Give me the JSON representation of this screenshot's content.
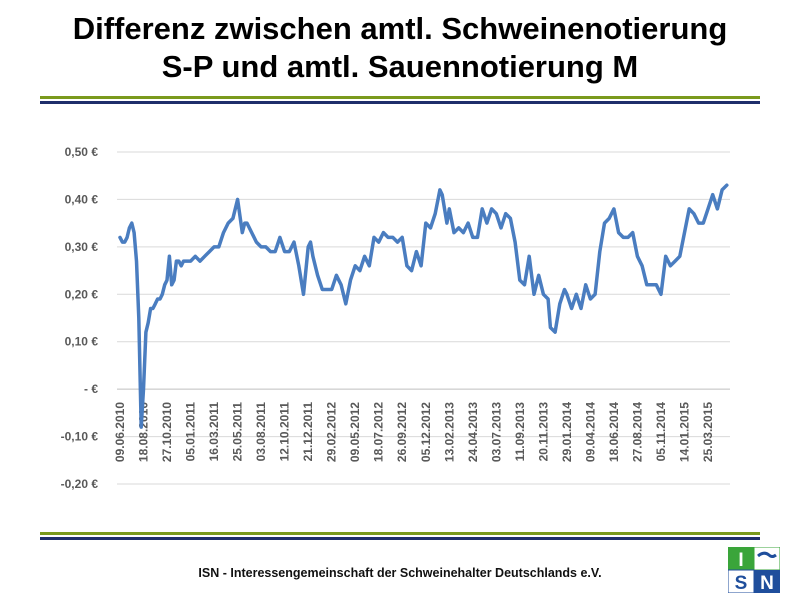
{
  "slide": {
    "title_line1": "Differenz zwischen amtl. Schweinenotierung",
    "title_line2": "S-P und amtl. Sauennotierung M",
    "footer": "ISN - Interessengemeinschaft der Schweinehalter Deutschlands e.V.",
    "logo_letters": "ISN",
    "colors": {
      "rule_green": "#7a9a1c",
      "rule_navy": "#1f2f6b",
      "series": "#4a7dc0",
      "logo_green": "#3aa53a",
      "logo_blue": "#1f4e9c"
    }
  },
  "chart_data": {
    "type": "line",
    "title": "",
    "xlabel": "",
    "ylabel": "",
    "ylim": [
      -0.2,
      0.5
    ],
    "grid": true,
    "legend": "none",
    "y_ticks": [
      {
        "value": 0.5,
        "label": "0,50 €"
      },
      {
        "value": 0.4,
        "label": "0,40 €"
      },
      {
        "value": 0.3,
        "label": "0,30 €"
      },
      {
        "value": 0.2,
        "label": "0,20 €"
      },
      {
        "value": 0.1,
        "label": "0,10 €"
      },
      {
        "value": 0.0,
        "label": "-  €"
      },
      {
        "value": -0.1,
        "label": "-0,10 €"
      },
      {
        "value": -0.2,
        "label": "-0,20 €"
      }
    ],
    "x_tick_labels": [
      "09.06.2010",
      "18.08.2010",
      "27.10.2010",
      "05.01.2011",
      "16.03.2011",
      "25.05.2011",
      "03.08.2011",
      "12.10.2011",
      "21.12.2011",
      "29.02.2012",
      "09.05.2012",
      "18.07.2012",
      "26.09.2012",
      "05.12.2012",
      "13.02.2013",
      "24.04.2013",
      "03.07.2013",
      "11.09.2013",
      "20.11.2013",
      "29.01.2014",
      "09.04.2014",
      "18.06.2014",
      "27.08.2014",
      "05.11.2014",
      "14.01.2015",
      "25.03.2015"
    ],
    "series": [
      {
        "color": "#4a7dc0",
        "x": [
          "2010-06-09",
          "2010-06-16",
          "2010-06-23",
          "2010-06-30",
          "2010-07-07",
          "2010-07-14",
          "2010-07-21",
          "2010-07-28",
          "2010-08-04",
          "2010-08-11",
          "2010-08-18",
          "2010-08-25",
          "2010-09-01",
          "2010-09-08",
          "2010-09-15",
          "2010-09-22",
          "2010-09-29",
          "2010-10-06",
          "2010-10-13",
          "2010-10-20",
          "2010-10-27",
          "2010-11-03",
          "2010-11-10",
          "2010-11-17",
          "2010-11-24",
          "2010-12-01",
          "2010-12-08",
          "2010-12-15",
          "2010-12-22",
          "2010-12-29",
          "2011-01-05",
          "2011-01-19",
          "2011-02-02",
          "2011-02-16",
          "2011-03-02",
          "2011-03-16",
          "2011-03-30",
          "2011-04-13",
          "2011-04-27",
          "2011-05-11",
          "2011-05-25",
          "2011-06-08",
          "2011-06-15",
          "2011-06-22",
          "2011-07-06",
          "2011-07-20",
          "2011-08-03",
          "2011-08-17",
          "2011-08-31",
          "2011-09-14",
          "2011-09-28",
          "2011-10-12",
          "2011-10-26",
          "2011-11-09",
          "2011-11-23",
          "2011-12-07",
          "2011-12-21",
          "2011-12-28",
          "2012-01-04",
          "2012-01-18",
          "2012-02-01",
          "2012-02-15",
          "2012-02-29",
          "2012-03-14",
          "2012-03-28",
          "2012-04-11",
          "2012-04-25",
          "2012-05-09",
          "2012-05-23",
          "2012-06-06",
          "2012-06-20",
          "2012-07-04",
          "2012-07-18",
          "2012-08-01",
          "2012-08-15",
          "2012-08-29",
          "2012-09-12",
          "2012-09-26",
          "2012-10-10",
          "2012-10-24",
          "2012-11-07",
          "2012-11-21",
          "2012-12-05",
          "2012-12-19",
          "2013-01-02",
          "2013-01-16",
          "2013-01-23",
          "2013-02-06",
          "2013-02-13",
          "2013-02-27",
          "2013-03-13",
          "2013-03-27",
          "2013-04-10",
          "2013-04-24",
          "2013-05-08",
          "2013-05-22",
          "2013-06-05",
          "2013-06-19",
          "2013-07-03",
          "2013-07-17",
          "2013-07-31",
          "2013-08-14",
          "2013-08-28",
          "2013-09-11",
          "2013-09-25",
          "2013-10-09",
          "2013-10-23",
          "2013-11-06",
          "2013-11-20",
          "2013-12-04",
          "2013-12-11",
          "2013-12-25",
          "2014-01-08",
          "2014-01-22",
          "2014-01-29",
          "2014-02-12",
          "2014-02-26",
          "2014-03-12",
          "2014-03-26",
          "2014-04-09",
          "2014-04-23",
          "2014-05-07",
          "2014-05-21",
          "2014-06-04",
          "2014-06-18",
          "2014-07-02",
          "2014-07-16",
          "2014-07-30",
          "2014-08-13",
          "2014-08-27",
          "2014-09-10",
          "2014-09-24",
          "2014-10-08",
          "2014-10-22",
          "2014-11-05",
          "2014-11-19",
          "2014-12-03",
          "2014-12-17",
          "2014-12-31",
          "2015-01-14",
          "2015-01-28",
          "2015-02-11",
          "2015-02-25",
          "2015-03-11",
          "2015-03-25",
          "2015-04-08",
          "2015-04-22",
          "2015-05-06",
          "2015-05-20"
        ],
        "values": [
          0.32,
          0.31,
          0.31,
          0.32,
          0.34,
          0.35,
          0.33,
          0.27,
          0.15,
          -0.08,
          0.0,
          0.12,
          0.14,
          0.17,
          0.17,
          0.18,
          0.19,
          0.19,
          0.2,
          0.22,
          0.23,
          0.28,
          0.22,
          0.23,
          0.27,
          0.27,
          0.26,
          0.27,
          0.27,
          0.27,
          0.27,
          0.28,
          0.27,
          0.28,
          0.29,
          0.3,
          0.3,
          0.33,
          0.35,
          0.36,
          0.4,
          0.33,
          0.35,
          0.35,
          0.33,
          0.31,
          0.3,
          0.3,
          0.29,
          0.29,
          0.32,
          0.29,
          0.29,
          0.31,
          0.26,
          0.2,
          0.3,
          0.31,
          0.28,
          0.24,
          0.21,
          0.21,
          0.21,
          0.24,
          0.22,
          0.18,
          0.23,
          0.26,
          0.25,
          0.28,
          0.26,
          0.32,
          0.31,
          0.33,
          0.32,
          0.32,
          0.31,
          0.32,
          0.26,
          0.25,
          0.29,
          0.26,
          0.35,
          0.34,
          0.37,
          0.42,
          0.41,
          0.35,
          0.38,
          0.33,
          0.34,
          0.33,
          0.35,
          0.32,
          0.32,
          0.38,
          0.35,
          0.38,
          0.37,
          0.34,
          0.37,
          0.36,
          0.31,
          0.23,
          0.22,
          0.28,
          0.2,
          0.24,
          0.2,
          0.19,
          0.13,
          0.12,
          0.18,
          0.21,
          0.2,
          0.17,
          0.2,
          0.17,
          0.22,
          0.19,
          0.2,
          0.29,
          0.35,
          0.36,
          0.38,
          0.33,
          0.32,
          0.32,
          0.33,
          0.28,
          0.26,
          0.22,
          0.22,
          0.22,
          0.2,
          0.28,
          0.26,
          0.27,
          0.28,
          0.33,
          0.38,
          0.37,
          0.35,
          0.35,
          0.38,
          0.41,
          0.38,
          0.42,
          0.43
        ]
      }
    ]
  }
}
